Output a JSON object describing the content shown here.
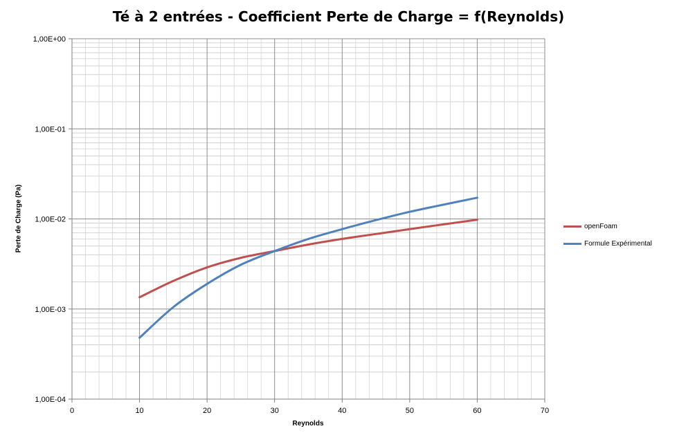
{
  "chart_data": {
    "type": "line",
    "title": "Té à 2 entrées - Coefficient Perte de Charge = f(Reynolds)",
    "xlabel": "Reynolds",
    "ylabel": "Perte de Charge (Pa)",
    "xlim": [
      0,
      70
    ],
    "ylim": [
      0.0001,
      1
    ],
    "yscale": "log",
    "x_ticks": [
      0,
      10,
      20,
      30,
      40,
      50,
      60,
      70
    ],
    "x_tick_labels": [
      "0",
      "10",
      "20",
      "30",
      "40",
      "50",
      "60",
      "70"
    ],
    "y_ticks": [
      0.0001,
      0.001,
      0.01,
      0.1,
      1
    ],
    "y_tick_labels": [
      "1,00E-04",
      "1,00E-03",
      "1,00E-02",
      "1,00E-01",
      "1,00E+00"
    ],
    "grid": true,
    "legend_position": "right",
    "series": [
      {
        "name": "openFoam",
        "color": "#C0504D",
        "x": [
          10,
          15,
          20,
          25,
          30,
          35,
          40,
          45,
          50,
          55,
          60
        ],
        "y": [
          0.00135,
          0.00205,
          0.0029,
          0.0037,
          0.0044,
          0.0052,
          0.006,
          0.0068,
          0.0077,
          0.0087,
          0.0098
        ]
      },
      {
        "name": "Formule Expérimental",
        "color": "#4F81BD",
        "x": [
          10,
          15,
          20,
          25,
          30,
          35,
          40,
          45,
          50,
          55,
          60
        ],
        "y": [
          0.00048,
          0.00105,
          0.0019,
          0.0031,
          0.0044,
          0.006,
          0.0077,
          0.0097,
          0.012,
          0.0144,
          0.0172
        ]
      }
    ]
  }
}
